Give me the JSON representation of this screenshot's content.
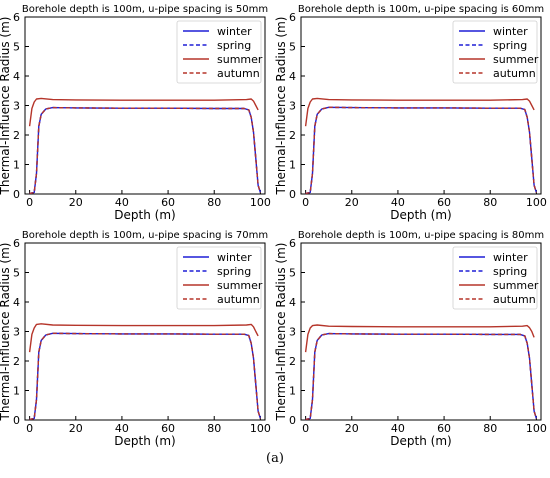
{
  "figure": {
    "caption": "(a)"
  },
  "chart_data": [
    {
      "type": "line",
      "title": "Borehole depth is 100m, u-pipe spacing is 50mm",
      "xlabel": "Depth (m)",
      "ylabel": "Thermal-Influence Radius (m)",
      "xlim": [
        -2,
        102
      ],
      "ylim": [
        0,
        6
      ],
      "xticks": [
        0,
        20,
        40,
        60,
        80,
        100
      ],
      "yticks": [
        0,
        1,
        2,
        3,
        4,
        5,
        6
      ],
      "legend": "top-right",
      "series": [
        {
          "name": "winter",
          "style": "solid",
          "color": "#1f1fd6",
          "x": [
            0,
            2,
            3,
            4,
            5,
            7,
            10,
            20,
            40,
            60,
            80,
            93,
            95,
            96,
            97,
            98,
            99,
            100
          ],
          "y": [
            0.02,
            0.05,
            0.7,
            2.3,
            2.7,
            2.88,
            2.93,
            2.92,
            2.91,
            2.91,
            2.9,
            2.9,
            2.85,
            2.6,
            2.1,
            1.2,
            0.3,
            0.05
          ]
        },
        {
          "name": "spring",
          "style": "dashed",
          "color": "#1f1fd6",
          "x": [
            0,
            2,
            3,
            4,
            5,
            7,
            10,
            20,
            40,
            60,
            80,
            93,
            95,
            96,
            97,
            98,
            99,
            100
          ],
          "y": [
            0.02,
            0.05,
            0.7,
            2.3,
            2.7,
            2.88,
            2.93,
            2.92,
            2.91,
            2.91,
            2.9,
            2.9,
            2.85,
            2.6,
            2.1,
            1.2,
            0.3,
            0.05
          ]
        },
        {
          "name": "summer",
          "style": "solid",
          "color": "#b5352a",
          "x": [
            0,
            1,
            2,
            3,
            5,
            10,
            20,
            40,
            60,
            80,
            94,
            96,
            97,
            98,
            99
          ],
          "y": [
            2.3,
            2.9,
            3.12,
            3.22,
            3.24,
            3.2,
            3.19,
            3.18,
            3.18,
            3.18,
            3.2,
            3.22,
            3.15,
            3.0,
            2.85
          ]
        },
        {
          "name": "autumn",
          "style": "dashed",
          "color": "#b5352a",
          "x": [
            0,
            2,
            3,
            4,
            5,
            7,
            10,
            20,
            40,
            60,
            80,
            93,
            95,
            96,
            97,
            98,
            99,
            100
          ],
          "y": [
            0.02,
            0.05,
            0.7,
            2.3,
            2.7,
            2.88,
            2.93,
            2.92,
            2.91,
            2.91,
            2.9,
            2.9,
            2.85,
            2.6,
            2.1,
            1.2,
            0.3,
            0.05
          ]
        }
      ]
    },
    {
      "type": "line",
      "title": "Borehole depth is 100m, u-pipe spacing is 60mm",
      "xlabel": "Depth (m)",
      "ylabel": "Thermal-Influence Radius (m)",
      "xlim": [
        -2,
        102
      ],
      "ylim": [
        0,
        6
      ],
      "xticks": [
        0,
        20,
        40,
        60,
        80,
        100
      ],
      "yticks": [
        0,
        1,
        2,
        3,
        4,
        5,
        6
      ],
      "legend": "top-right",
      "series": [
        {
          "name": "winter",
          "style": "solid",
          "color": "#1f1fd6",
          "x": [
            0,
            2,
            3,
            4,
            5,
            7,
            10,
            20,
            40,
            60,
            80,
            93,
            95,
            96,
            97,
            98,
            99,
            100
          ],
          "y": [
            0.02,
            0.05,
            0.7,
            2.3,
            2.7,
            2.88,
            2.94,
            2.93,
            2.92,
            2.92,
            2.91,
            2.91,
            2.86,
            2.6,
            2.1,
            1.2,
            0.3,
            0.05
          ]
        },
        {
          "name": "spring",
          "style": "dashed",
          "color": "#1f1fd6",
          "x": [
            0,
            2,
            3,
            4,
            5,
            7,
            10,
            20,
            40,
            60,
            80,
            93,
            95,
            96,
            97,
            98,
            99,
            100
          ],
          "y": [
            0.02,
            0.05,
            0.7,
            2.3,
            2.7,
            2.88,
            2.94,
            2.93,
            2.92,
            2.92,
            2.91,
            2.91,
            2.86,
            2.6,
            2.1,
            1.2,
            0.3,
            0.05
          ]
        },
        {
          "name": "summer",
          "style": "solid",
          "color": "#b5352a",
          "x": [
            0,
            1,
            2,
            3,
            5,
            10,
            20,
            40,
            60,
            80,
            94,
            96,
            97,
            98,
            99
          ],
          "y": [
            2.3,
            2.9,
            3.12,
            3.22,
            3.24,
            3.2,
            3.19,
            3.18,
            3.18,
            3.18,
            3.2,
            3.22,
            3.15,
            3.0,
            2.85
          ]
        },
        {
          "name": "autumn",
          "style": "dashed",
          "color": "#b5352a",
          "x": [
            0,
            2,
            3,
            4,
            5,
            7,
            10,
            20,
            40,
            60,
            80,
            93,
            95,
            96,
            97,
            98,
            99,
            100
          ],
          "y": [
            0.02,
            0.05,
            0.7,
            2.3,
            2.7,
            2.88,
            2.94,
            2.93,
            2.92,
            2.92,
            2.91,
            2.91,
            2.86,
            2.6,
            2.1,
            1.2,
            0.3,
            0.05
          ]
        }
      ]
    },
    {
      "type": "line",
      "title": "Borehole depth is 100m, u-pipe spacing is 70mm",
      "xlabel": "Depth (m)",
      "ylabel": "Thermal-Influence Radius (m)",
      "xlim": [
        -2,
        102
      ],
      "ylim": [
        0,
        6
      ],
      "xticks": [
        0,
        20,
        40,
        60,
        80,
        100
      ],
      "yticks": [
        0,
        1,
        2,
        3,
        4,
        5,
        6
      ],
      "legend": "top-right",
      "series": [
        {
          "name": "winter",
          "style": "solid",
          "color": "#1f1fd6",
          "x": [
            0,
            2,
            3,
            4,
            5,
            7,
            10,
            20,
            40,
            60,
            80,
            93,
            95,
            96,
            97,
            98,
            99,
            100
          ],
          "y": [
            0.02,
            0.05,
            0.7,
            2.3,
            2.7,
            2.88,
            2.94,
            2.93,
            2.92,
            2.92,
            2.91,
            2.91,
            2.86,
            2.6,
            2.1,
            1.2,
            0.3,
            0.05
          ]
        },
        {
          "name": "spring",
          "style": "dashed",
          "color": "#1f1fd6",
          "x": [
            0,
            2,
            3,
            4,
            5,
            7,
            10,
            20,
            40,
            60,
            80,
            93,
            95,
            96,
            97,
            98,
            99,
            100
          ],
          "y": [
            0.02,
            0.05,
            0.7,
            2.3,
            2.7,
            2.88,
            2.94,
            2.93,
            2.92,
            2.92,
            2.91,
            2.91,
            2.86,
            2.6,
            2.1,
            1.2,
            0.3,
            0.05
          ]
        },
        {
          "name": "summer",
          "style": "solid",
          "color": "#b5352a",
          "x": [
            0,
            1,
            2,
            3,
            5,
            10,
            20,
            40,
            60,
            80,
            94,
            96,
            97,
            98,
            99
          ],
          "y": [
            2.3,
            2.9,
            3.12,
            3.24,
            3.26,
            3.22,
            3.21,
            3.2,
            3.2,
            3.2,
            3.22,
            3.24,
            3.16,
            3.0,
            2.85
          ]
        },
        {
          "name": "autumn",
          "style": "dashed",
          "color": "#b5352a",
          "x": [
            0,
            2,
            3,
            4,
            5,
            7,
            10,
            20,
            40,
            60,
            80,
            93,
            95,
            96,
            97,
            98,
            99,
            100
          ],
          "y": [
            0.02,
            0.05,
            0.7,
            2.3,
            2.7,
            2.88,
            2.94,
            2.93,
            2.92,
            2.92,
            2.91,
            2.91,
            2.86,
            2.6,
            2.1,
            1.2,
            0.3,
            0.05
          ]
        }
      ]
    },
    {
      "type": "line",
      "title": "Borehole depth is 100m, u-pipe spacing is 80mm",
      "xlabel": "Depth (m)",
      "ylabel": "Thermal-Influence Radius (m)",
      "xlim": [
        -2,
        102
      ],
      "ylim": [
        0,
        6
      ],
      "xticks": [
        0,
        20,
        40,
        60,
        80,
        100
      ],
      "yticks": [
        0,
        1,
        2,
        3,
        4,
        5,
        6
      ],
      "legend": "top-right",
      "series": [
        {
          "name": "winter",
          "style": "solid",
          "color": "#1f1fd6",
          "x": [
            0,
            2,
            3,
            4,
            5,
            7,
            10,
            20,
            40,
            60,
            80,
            93,
            95,
            96,
            97,
            98,
            99,
            100
          ],
          "y": [
            0.02,
            0.05,
            0.7,
            2.3,
            2.7,
            2.88,
            2.93,
            2.92,
            2.91,
            2.91,
            2.9,
            2.9,
            2.85,
            2.6,
            2.1,
            1.2,
            0.3,
            0.05
          ]
        },
        {
          "name": "spring",
          "style": "dashed",
          "color": "#1f1fd6",
          "x": [
            0,
            2,
            3,
            4,
            5,
            7,
            10,
            20,
            40,
            60,
            80,
            93,
            95,
            96,
            97,
            98,
            99,
            100
          ],
          "y": [
            0.02,
            0.05,
            0.7,
            2.3,
            2.7,
            2.88,
            2.93,
            2.92,
            2.91,
            2.91,
            2.9,
            2.9,
            2.85,
            2.6,
            2.1,
            1.2,
            0.3,
            0.05
          ]
        },
        {
          "name": "summer",
          "style": "solid",
          "color": "#b5352a",
          "x": [
            0,
            1,
            2,
            3,
            5,
            10,
            20,
            40,
            60,
            80,
            94,
            96,
            97,
            98,
            99
          ],
          "y": [
            2.3,
            2.9,
            3.12,
            3.2,
            3.22,
            3.18,
            3.17,
            3.16,
            3.16,
            3.16,
            3.18,
            3.2,
            3.13,
            3.0,
            2.8
          ]
        },
        {
          "name": "autumn",
          "style": "dashed",
          "color": "#b5352a",
          "x": [
            0,
            2,
            3,
            4,
            5,
            7,
            10,
            20,
            40,
            60,
            80,
            93,
            95,
            96,
            97,
            98,
            99,
            100
          ],
          "y": [
            0.02,
            0.05,
            0.7,
            2.3,
            2.7,
            2.88,
            2.93,
            2.92,
            2.91,
            2.91,
            2.9,
            2.9,
            2.85,
            2.6,
            2.1,
            1.2,
            0.3,
            0.05
          ]
        }
      ]
    }
  ]
}
